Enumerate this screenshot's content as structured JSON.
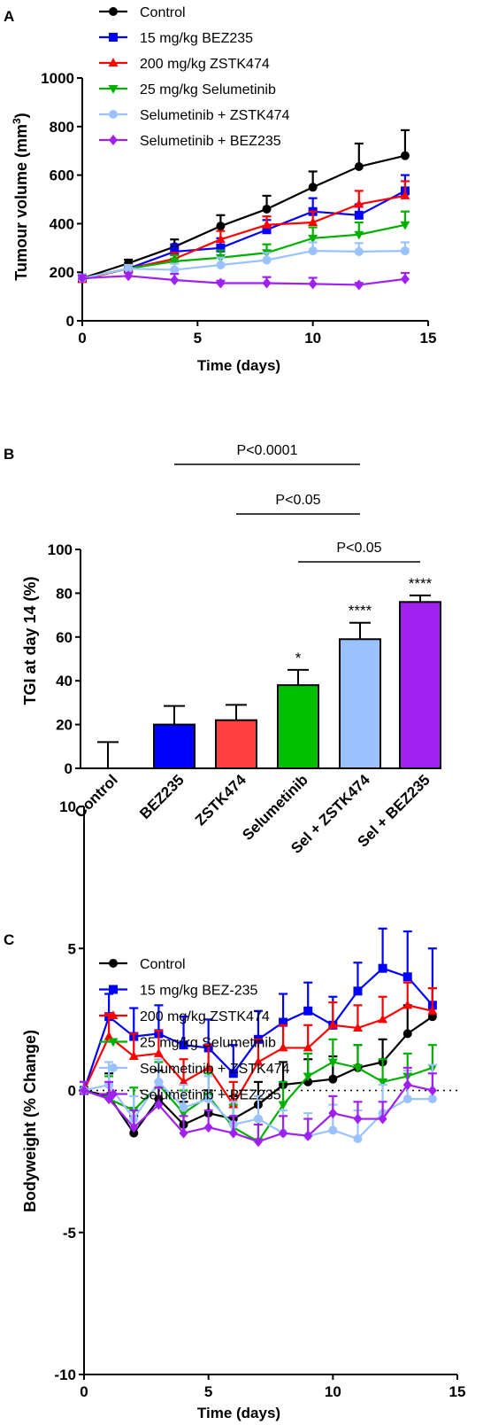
{
  "panel_labels": [
    "A",
    "B",
    "C"
  ],
  "chart_data": [
    {
      "type": "line",
      "panel": "A",
      "xlabel": "Time (days)",
      "ylabel": "Tumour volume (mm³)",
      "ylabel_main": "Tumour volume (mm",
      "ylabel_sup": "3",
      "ylabel_close": ")",
      "xlim": [
        0,
        15
      ],
      "ylim": [
        0,
        1000
      ],
      "xticks": [
        0,
        5,
        10,
        15
      ],
      "yticks": [
        0,
        200,
        400,
        600,
        800,
        1000
      ],
      "legend_position": "top-left",
      "series": [
        {
          "name": "Control",
          "color": "#000000",
          "marker": "circle",
          "x": [
            0,
            2,
            4,
            6,
            8,
            10,
            12,
            14
          ],
          "y": [
            175,
            237,
            305,
            390,
            460,
            550,
            635,
            680
          ],
          "err": [
            15,
            15,
            30,
            45,
            55,
            65,
            95,
            105
          ]
        },
        {
          "name": "15 mg/kg BEZ235",
          "color": "#0000ff",
          "marker": "square",
          "x": [
            0,
            2,
            4,
            6,
            8,
            10,
            12,
            14
          ],
          "y": [
            175,
            215,
            285,
            300,
            375,
            450,
            435,
            535
          ],
          "err": [
            15,
            15,
            30,
            40,
            40,
            55,
            45,
            65
          ]
        },
        {
          "name": "200 mg/kg ZSTK474",
          "color": "#ff0000",
          "marker": "triangle-up",
          "x": [
            0,
            2,
            4,
            6,
            8,
            10,
            12,
            14
          ],
          "y": [
            170,
            215,
            255,
            335,
            395,
            405,
            480,
            515
          ],
          "err": [
            15,
            15,
            25,
            35,
            35,
            45,
            55,
            60
          ]
        },
        {
          "name": "25 mg/kg Selumetinib",
          "color": "#00b000",
          "marker": "triangle-down",
          "x": [
            0,
            2,
            4,
            6,
            8,
            10,
            12,
            14
          ],
          "y": [
            175,
            215,
            245,
            260,
            280,
            340,
            355,
            395
          ],
          "err": [
            15,
            15,
            25,
            30,
            35,
            45,
            50,
            55
          ]
        },
        {
          "name": "Selumetinib + ZSTK474",
          "color": "#99c2ff",
          "marker": "circle",
          "x": [
            0,
            2,
            4,
            6,
            8,
            10,
            12,
            14
          ],
          "y": [
            175,
            215,
            210,
            230,
            250,
            288,
            285,
            288
          ],
          "err": [
            15,
            15,
            25,
            30,
            30,
            35,
            35,
            35
          ]
        },
        {
          "name": "Selumetinib + BEZ235",
          "color": "#a020f0",
          "marker": "diamond",
          "x": [
            0,
            2,
            4,
            6,
            8,
            10,
            12,
            14
          ],
          "y": [
            175,
            185,
            168,
            155,
            155,
            152,
            148,
            172
          ],
          "err": [
            12,
            12,
            25,
            10,
            25,
            25,
            8,
            25
          ]
        }
      ]
    },
    {
      "type": "bar",
      "panel": "B",
      "ylabel": "TGI at day 14 (%)",
      "ylim": [
        0,
        100
      ],
      "yticks": [
        0,
        20,
        40,
        60,
        80,
        100
      ],
      "categories": [
        "Control",
        "BEZ235",
        "ZSTK474",
        "Selumetinib",
        "Sel + ZSTK474",
        "Sel + BEZ235"
      ],
      "values": [
        0,
        20,
        22,
        38,
        59,
        76
      ],
      "errors": [
        12,
        8.5,
        7,
        7,
        7.5,
        3
      ],
      "colors": [
        "#ffffff",
        "#0000ff",
        "#ff4040",
        "#00c000",
        "#99c2ff",
        "#a020f0"
      ],
      "significance": [
        "",
        "",
        "",
        "*",
        "****",
        "****"
      ],
      "comparisons": [
        {
          "label": "P<0.0001",
          "from": 1,
          "to": 4
        },
        {
          "label": "P<0.05",
          "from": 2,
          "to": 4
        },
        {
          "label": "P<0.05",
          "from": 3,
          "to": 5
        }
      ]
    },
    {
      "type": "line",
      "panel": "C",
      "xlabel": "Time (days)",
      "ylabel": "Bodyweight (% Change)",
      "xlim": [
        0,
        15
      ],
      "ylim": [
        -10,
        10
      ],
      "xticks": [
        0,
        5,
        10,
        15
      ],
      "yticks": [
        -10,
        -5,
        0,
        5,
        10
      ],
      "zero_line": "dotted",
      "legend_position": "top-left",
      "series": [
        {
          "name": "Control",
          "color": "#000000",
          "marker": "circle",
          "x": [
            0,
            1,
            2,
            3,
            4,
            5,
            6,
            7,
            8,
            9,
            10,
            11,
            12,
            13,
            14
          ],
          "y": [
            0,
            -0.2,
            -1.5,
            -0.3,
            -1.2,
            -0.8,
            -1.0,
            -0.5,
            0.2,
            0.3,
            0.4,
            0.8,
            1.0,
            2.0,
            2.6
          ],
          "err": [
            0.3,
            0.8,
            0.6,
            1.0,
            0.8,
            0.8,
            0.8,
            0.8,
            0.8,
            0.8,
            0.8,
            0.8,
            0.8,
            1.0,
            1.0
          ]
        },
        {
          "name": "15 mg/kg BEZ-235",
          "color": "#0000ff",
          "marker": "square",
          "x": [
            0,
            1,
            2,
            3,
            4,
            5,
            6,
            7,
            8,
            9,
            10,
            11,
            12,
            13,
            14
          ],
          "y": [
            0,
            2.6,
            1.9,
            2.0,
            1.6,
            1.5,
            0.6,
            1.8,
            2.4,
            2.8,
            2.3,
            3.5,
            4.3,
            4.0,
            3.0
          ],
          "err": [
            0.3,
            0.8,
            1.0,
            1.0,
            1.0,
            1.0,
            1.0,
            1.0,
            1.0,
            1.0,
            1.0,
            1.0,
            1.4,
            1.6,
            2.0
          ]
        },
        {
          "name": "200 mg/kg ZSTK474",
          "color": "#ff0000",
          "marker": "triangle-up",
          "x": [
            0,
            1,
            2,
            3,
            4,
            5,
            6,
            7,
            8,
            9,
            10,
            11,
            12,
            13,
            14
          ],
          "y": [
            0,
            1.9,
            1.2,
            1.3,
            0.3,
            0.8,
            -0.5,
            1.0,
            1.5,
            1.5,
            2.3,
            2.2,
            2.5,
            3.0,
            2.8
          ],
          "err": [
            0.3,
            0.8,
            0.8,
            0.8,
            0.8,
            0.8,
            0.8,
            0.8,
            0.8,
            0.8,
            0.8,
            0.8,
            0.8,
            0.8,
            0.8
          ]
        },
        {
          "name": "25 mg/kg Selumetinib",
          "color": "#00b000",
          "marker": "triangle-down",
          "x": [
            0,
            1,
            2,
            3,
            4,
            5,
            6,
            7,
            8,
            9,
            10,
            11,
            12,
            13,
            14
          ],
          "y": [
            0,
            -0.3,
            -0.7,
            0.2,
            -0.8,
            -0.2,
            -1.3,
            -1.8,
            -0.5,
            0.5,
            1.0,
            0.8,
            0.3,
            0.5,
            0.8
          ],
          "err": [
            0.3,
            0.8,
            0.8,
            0.8,
            0.8,
            0.8,
            0.8,
            0.8,
            0.8,
            0.8,
            0.8,
            0.8,
            0.8,
            0.8,
            0.8
          ]
        },
        {
          "name": "Selumetinib + ZSTK474",
          "color": "#99c2ff",
          "marker": "circle",
          "x": [
            0,
            1,
            2,
            3,
            4,
            5,
            6,
            7,
            8,
            9,
            10,
            11,
            12,
            13,
            14
          ],
          "y": [
            0,
            0.2,
            -1.0,
            0.3,
            -0.6,
            -0.3,
            -1.2,
            -1.0,
            -1.5,
            -1.6,
            -1.4,
            -1.7,
            -0.8,
            -0.3,
            -0.3
          ],
          "err": [
            0.3,
            0.8,
            0.8,
            0.8,
            0.8,
            0.8,
            0.8,
            0.8,
            0.8,
            0.8,
            0.9,
            1.0,
            1.0,
            1.0,
            1.2
          ]
        },
        {
          "name": "Selumetinib + BEZ235",
          "color": "#a020f0",
          "marker": "diamond",
          "x": [
            0,
            1,
            2,
            3,
            4,
            5,
            6,
            7,
            8,
            9,
            10,
            11,
            12,
            13,
            14
          ],
          "y": [
            0,
            -0.3,
            -1.3,
            -0.5,
            -1.5,
            -1.3,
            -1.5,
            -1.8,
            -1.5,
            -1.6,
            -0.8,
            -1.0,
            -1.0,
            0.2,
            0.0
          ],
          "err": [
            0.3,
            0.6,
            0.6,
            0.6,
            0.6,
            0.6,
            0.6,
            0.6,
            0.6,
            0.6,
            0.6,
            0.6,
            0.6,
            0.6,
            0.6
          ]
        }
      ]
    }
  ]
}
